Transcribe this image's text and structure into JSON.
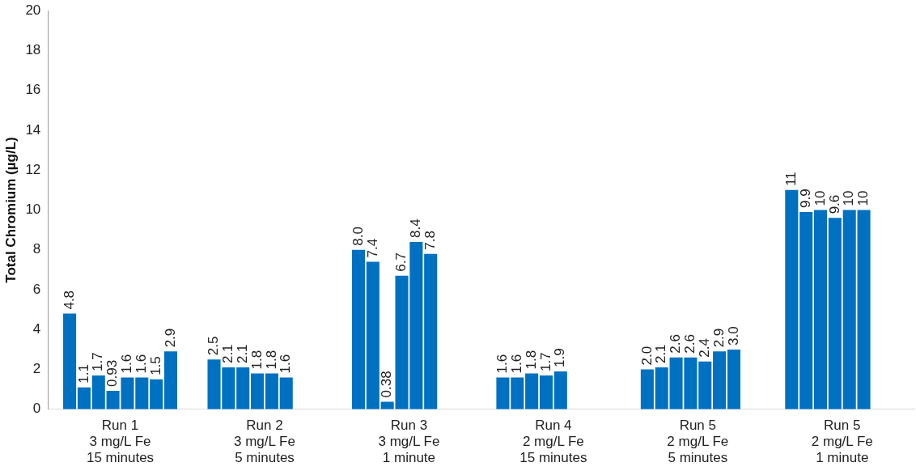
{
  "chart_data": {
    "type": "bar",
    "ylabel": "Total Chromium (µg/L)",
    "categories": [
      "Run 1\n3 mg/L Fe\n15 minutes",
      "Run 2\n3 mg/L Fe\n5 minutes",
      "Run 3\n3 mg/L Fe\n1 minute",
      "Run 4\n2 mg/L Fe\n15 minutes",
      "Run 5\n2 mg/L Fe\n5 minutes",
      "Run 5\n2 mg/L Fe\n1 minute"
    ],
    "series": [
      {
        "color": "#0070c0",
        "values": [
          4.8,
          2.5,
          8.0,
          1.6,
          2.0,
          11
        ],
        "value_labels": [
          "4.8",
          "2.5",
          "8.0",
          "1.6",
          "2.0",
          "11"
        ]
      },
      {
        "color": "#0070c0",
        "values": [
          1.1,
          2.1,
          7.4,
          1.6,
          2.1,
          9.9
        ],
        "value_labels": [
          "1.1",
          "2.1",
          "7.4",
          "1.6",
          "2.1",
          "9.9"
        ]
      },
      {
        "color": "#0070c0",
        "values": [
          1.7,
          2.1,
          0.38,
          1.8,
          2.6,
          10
        ],
        "value_labels": [
          "1.7",
          "2.1",
          "0.38",
          "1.8",
          "2.6",
          "10"
        ]
      },
      {
        "color": "#0070c0",
        "values": [
          0.93,
          1.8,
          6.7,
          1.7,
          2.6,
          9.6
        ],
        "value_labels": [
          "0.93",
          "1.8",
          "6.7",
          "1.7",
          "2.6",
          "9.6"
        ]
      },
      {
        "color": "#0070c0",
        "values": [
          1.6,
          1.8,
          8.4,
          1.9,
          2.4,
          10
        ],
        "value_labels": [
          "1.6",
          "1.8",
          "8.4",
          "1.9",
          "2.4",
          "10"
        ]
      },
      {
        "color": "#0070c0",
        "values": [
          1.6,
          1.6,
          7.8,
          null,
          2.9,
          10
        ],
        "value_labels": [
          "1.6",
          "1.6",
          "7.8",
          null,
          "2.9",
          "10"
        ]
      },
      {
        "color": "#0070c0",
        "values": [
          1.5,
          null,
          null,
          null,
          3.0,
          null
        ],
        "value_labels": [
          "1.5",
          null,
          null,
          null,
          "3.0",
          null
        ]
      },
      {
        "color": "#0070c0",
        "values": [
          2.9,
          null,
          null,
          null,
          null,
          null
        ],
        "value_labels": [
          "2.9",
          null,
          null,
          null,
          null,
          null
        ]
      }
    ],
    "ylim": [
      0,
      20
    ],
    "yticks": [
      0,
      2,
      4,
      6,
      8,
      10,
      12,
      14,
      16,
      18,
      20
    ],
    "grid": false,
    "legend": false
  }
}
